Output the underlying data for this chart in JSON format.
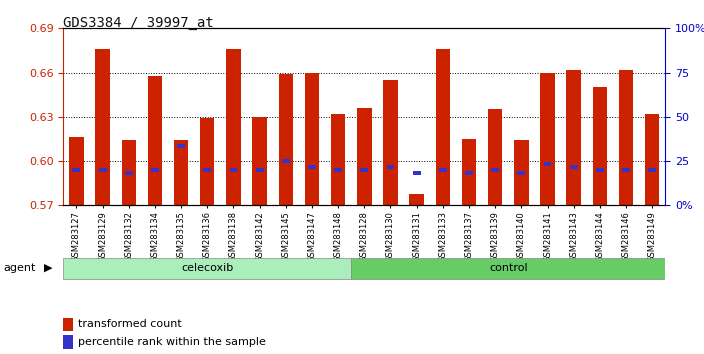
{
  "title": "GDS3384 / 39997_at",
  "samples": [
    "GSM283127",
    "GSM283129",
    "GSM283132",
    "GSM283134",
    "GSM283135",
    "GSM283136",
    "GSM283138",
    "GSM283142",
    "GSM283145",
    "GSM283147",
    "GSM283148",
    "GSM283128",
    "GSM283130",
    "GSM283131",
    "GSM283133",
    "GSM283137",
    "GSM283139",
    "GSM283140",
    "GSM283141",
    "GSM283143",
    "GSM283144",
    "GSM283146",
    "GSM283149"
  ],
  "red_values": [
    0.616,
    0.676,
    0.614,
    0.658,
    0.614,
    0.629,
    0.676,
    0.63,
    0.659,
    0.66,
    0.632,
    0.636,
    0.655,
    0.578,
    0.676,
    0.615,
    0.635,
    0.614,
    0.66,
    0.662,
    0.65,
    0.662,
    0.632
  ],
  "blue_values": [
    0.594,
    0.594,
    0.592,
    0.594,
    0.61,
    0.594,
    0.594,
    0.594,
    0.6,
    0.596,
    0.594,
    0.594,
    0.596,
    0.592,
    0.594,
    0.592,
    0.594,
    0.592,
    0.598,
    0.596,
    0.594,
    0.594,
    0.594
  ],
  "group_celecoxib": 11,
  "group_control": 12,
  "y_min": 0.57,
  "y_max": 0.69,
  "y_ticks_left": [
    0.57,
    0.6,
    0.63,
    0.66,
    0.69
  ],
  "y_ticks_right": [
    0,
    25,
    50,
    75,
    100
  ],
  "y_right_labels": [
    "0%",
    "25",
    "50",
    "75",
    "100%"
  ],
  "bar_color": "#cc2200",
  "blue_color": "#3333cc",
  "celecoxib_color": "#aaeebb",
  "control_color": "#66cc66",
  "group_label_celecoxib": "celecoxib",
  "group_label_control": "control",
  "agent_label": "agent",
  "legend_red": "transformed count",
  "legend_blue": "percentile rank within the sample",
  "title_color": "#111111",
  "axis_color_left": "#cc2200",
  "axis_color_right": "#0000cc",
  "background_color": "#ffffff",
  "plot_bg": "#ffffff",
  "bar_width": 0.55
}
